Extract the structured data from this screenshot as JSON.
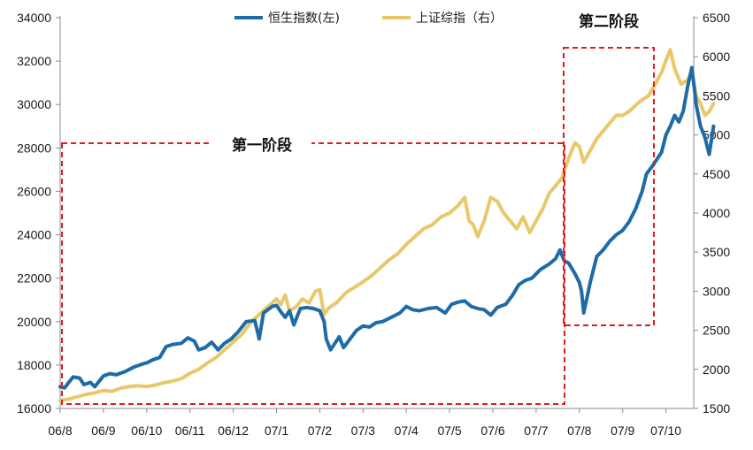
{
  "chart_data": {
    "type": "line",
    "x_ticks": [
      "06/8",
      "06/9",
      "06/10",
      "06/11",
      "06/12",
      "07/1",
      "07/2",
      "07/3",
      "07/4",
      "07/5",
      "07/6",
      "07/7",
      "07/8",
      "07/9",
      "07/10"
    ],
    "left_axis": {
      "ylim": [
        16000,
        34000
      ],
      "ticks": [
        16000,
        18000,
        20000,
        22000,
        24000,
        26000,
        28000,
        30000,
        32000,
        34000
      ]
    },
    "right_axis": {
      "ylim": [
        1500,
        6500
      ],
      "ticks": [
        1500,
        2000,
        2500,
        3000,
        3500,
        4000,
        4500,
        5000,
        5500,
        6000,
        6500
      ]
    },
    "series": [
      {
        "name": "恒生指数(左)",
        "axis": "left",
        "color": "#1F6BA5",
        "points": [
          [
            0,
            17000
          ],
          [
            0.1,
            16950
          ],
          [
            0.2,
            17200
          ],
          [
            0.3,
            17450
          ],
          [
            0.45,
            17400
          ],
          [
            0.55,
            17100
          ],
          [
            0.7,
            17200
          ],
          [
            0.8,
            17000
          ],
          [
            1,
            17500
          ],
          [
            1.15,
            17600
          ],
          [
            1.3,
            17550
          ],
          [
            1.5,
            17700
          ],
          [
            1.7,
            17900
          ],
          [
            1.9,
            18050
          ],
          [
            2,
            18100
          ],
          [
            2.15,
            18250
          ],
          [
            2.3,
            18350
          ],
          [
            2.45,
            18850
          ],
          [
            2.6,
            18950
          ],
          [
            2.8,
            19000
          ],
          [
            2.95,
            19250
          ],
          [
            3.1,
            19100
          ],
          [
            3.2,
            18700
          ],
          [
            3.35,
            18800
          ],
          [
            3.5,
            19050
          ],
          [
            3.65,
            18700
          ],
          [
            3.8,
            19000
          ],
          [
            3.95,
            19200
          ],
          [
            4.1,
            19500
          ],
          [
            4.3,
            20000
          ],
          [
            4.5,
            20050
          ],
          [
            4.6,
            19200
          ],
          [
            4.7,
            20400
          ],
          [
            4.9,
            20700
          ],
          [
            5,
            20750
          ],
          [
            5.1,
            20450
          ],
          [
            5.2,
            20200
          ],
          [
            5.3,
            20500
          ],
          [
            5.4,
            19850
          ],
          [
            5.55,
            20600
          ],
          [
            5.7,
            20650
          ],
          [
            5.85,
            20600
          ],
          [
            6,
            20500
          ],
          [
            6.1,
            20000
          ],
          [
            6.15,
            19200
          ],
          [
            6.25,
            18700
          ],
          [
            6.35,
            19000
          ],
          [
            6.45,
            19300
          ],
          [
            6.55,
            18800
          ],
          [
            6.7,
            19200
          ],
          [
            6.85,
            19600
          ],
          [
            7,
            19800
          ],
          [
            7.15,
            19750
          ],
          [
            7.3,
            19950
          ],
          [
            7.45,
            20000
          ],
          [
            7.65,
            20200
          ],
          [
            7.85,
            20400
          ],
          [
            8,
            20700
          ],
          [
            8.15,
            20550
          ],
          [
            8.3,
            20500
          ],
          [
            8.5,
            20600
          ],
          [
            8.7,
            20650
          ],
          [
            8.9,
            20400
          ],
          [
            9.05,
            20800
          ],
          [
            9.2,
            20900
          ],
          [
            9.35,
            20950
          ],
          [
            9.5,
            20700
          ],
          [
            9.65,
            20600
          ],
          [
            9.8,
            20550
          ],
          [
            9.95,
            20300
          ],
          [
            10.1,
            20650
          ],
          [
            10.3,
            20800
          ],
          [
            10.45,
            21200
          ],
          [
            10.6,
            21700
          ],
          [
            10.75,
            21900
          ],
          [
            10.9,
            22000
          ],
          [
            11,
            22200
          ],
          [
            11.1,
            22400
          ],
          [
            11.3,
            22650
          ],
          [
            11.45,
            22900
          ],
          [
            11.55,
            23300
          ],
          [
            11.65,
            22800
          ],
          [
            11.75,
            22700
          ],
          [
            11.9,
            22200
          ],
          [
            12,
            21800
          ],
          [
            12.05,
            21400
          ],
          [
            12.1,
            20400
          ],
          [
            12.25,
            21800
          ],
          [
            12.4,
            23000
          ],
          [
            12.55,
            23300
          ],
          [
            12.7,
            23700
          ],
          [
            12.85,
            24000
          ],
          [
            13,
            24200
          ],
          [
            13.15,
            24600
          ],
          [
            13.3,
            25200
          ],
          [
            13.45,
            26000
          ],
          [
            13.55,
            26800
          ],
          [
            13.7,
            27200
          ],
          [
            13.9,
            27800
          ],
          [
            14,
            28600
          ],
          [
            14.1,
            29000
          ],
          [
            14.2,
            29500
          ],
          [
            14.3,
            29200
          ],
          [
            14.4,
            29700
          ],
          [
            14.5,
            30800
          ],
          [
            14.6,
            31700
          ],
          [
            14.7,
            30000
          ],
          [
            14.8,
            29000
          ],
          [
            14.9,
            28500
          ],
          [
            15,
            27700
          ],
          [
            15.1,
            29000
          ]
        ]
      },
      {
        "name": "上证综指（右）",
        "axis": "right",
        "color": "#E8C86A",
        "points": [
          [
            0,
            1600
          ],
          [
            0.2,
            1620
          ],
          [
            0.4,
            1650
          ],
          [
            0.6,
            1680
          ],
          [
            0.8,
            1700
          ],
          [
            1,
            1730
          ],
          [
            1.2,
            1720
          ],
          [
            1.4,
            1760
          ],
          [
            1.6,
            1780
          ],
          [
            1.8,
            1790
          ],
          [
            2,
            1780
          ],
          [
            2.2,
            1800
          ],
          [
            2.4,
            1830
          ],
          [
            2.6,
            1850
          ],
          [
            2.8,
            1880
          ],
          [
            3,
            1950
          ],
          [
            3.2,
            2000
          ],
          [
            3.4,
            2080
          ],
          [
            3.6,
            2150
          ],
          [
            3.8,
            2250
          ],
          [
            4,
            2350
          ],
          [
            4.2,
            2450
          ],
          [
            4.4,
            2600
          ],
          [
            4.6,
            2700
          ],
          [
            4.75,
            2780
          ],
          [
            4.9,
            2850
          ],
          [
            5,
            2900
          ],
          [
            5.1,
            2830
          ],
          [
            5.2,
            2950
          ],
          [
            5.3,
            2750
          ],
          [
            5.45,
            2800
          ],
          [
            5.6,
            2900
          ],
          [
            5.75,
            2850
          ],
          [
            5.9,
            3000
          ],
          [
            6,
            3020
          ],
          [
            6.1,
            2700
          ],
          [
            6.2,
            2780
          ],
          [
            6.4,
            2860
          ],
          [
            6.6,
            2980
          ],
          [
            6.8,
            3050
          ],
          [
            7,
            3120
          ],
          [
            7.2,
            3200
          ],
          [
            7.4,
            3300
          ],
          [
            7.6,
            3400
          ],
          [
            7.8,
            3480
          ],
          [
            8,
            3600
          ],
          [
            8.2,
            3700
          ],
          [
            8.4,
            3800
          ],
          [
            8.6,
            3850
          ],
          [
            8.8,
            3950
          ],
          [
            9,
            4000
          ],
          [
            9.2,
            4100
          ],
          [
            9.35,
            4200
          ],
          [
            9.45,
            3900
          ],
          [
            9.55,
            3850
          ],
          [
            9.65,
            3700
          ],
          [
            9.8,
            3900
          ],
          [
            9.95,
            4200
          ],
          [
            10.1,
            4150
          ],
          [
            10.25,
            4000
          ],
          [
            10.4,
            3900
          ],
          [
            10.55,
            3800
          ],
          [
            10.7,
            3950
          ],
          [
            10.85,
            3750
          ],
          [
            11,
            3900
          ],
          [
            11.15,
            4050
          ],
          [
            11.3,
            4250
          ],
          [
            11.45,
            4350
          ],
          [
            11.6,
            4450
          ],
          [
            11.75,
            4700
          ],
          [
            11.9,
            4900
          ],
          [
            12,
            4850
          ],
          [
            12.1,
            4650
          ],
          [
            12.25,
            4800
          ],
          [
            12.4,
            4950
          ],
          [
            12.55,
            5050
          ],
          [
            12.7,
            5150
          ],
          [
            12.85,
            5250
          ],
          [
            13,
            5250
          ],
          [
            13.15,
            5300
          ],
          [
            13.3,
            5380
          ],
          [
            13.45,
            5450
          ],
          [
            13.6,
            5500
          ],
          [
            13.75,
            5650
          ],
          [
            13.9,
            5800
          ],
          [
            14,
            5950
          ],
          [
            14.1,
            6090
          ],
          [
            14.2,
            5850
          ],
          [
            14.35,
            5650
          ],
          [
            14.5,
            5700
          ],
          [
            14.6,
            5800
          ],
          [
            14.7,
            5500
          ],
          [
            14.8,
            5400
          ],
          [
            14.9,
            5250
          ],
          [
            15,
            5300
          ],
          [
            15.1,
            5400
          ]
        ]
      }
    ],
    "legend_position": "top-center",
    "annotations": [
      "第一阶段",
      "第二阶段"
    ]
  }
}
